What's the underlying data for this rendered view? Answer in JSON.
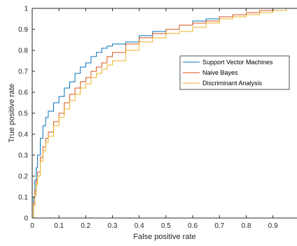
{
  "chart_data": {
    "type": "line",
    "title": "",
    "xlabel": "False positive rate",
    "ylabel": "True positive rate",
    "xlim": [
      0,
      0.99
    ],
    "ylim": [
      0,
      1
    ],
    "xticks": [
      "0",
      "0.1",
      "0.2",
      "0.3",
      "0.4",
      "0.5",
      "0.6",
      "0.7",
      "0.8",
      "0.9"
    ],
    "yticks": [
      "0",
      "0.1",
      "0.2",
      "0.3",
      "0.4",
      "0.5",
      "0.6",
      "0.7",
      "0.8",
      "0.9",
      "1"
    ],
    "grid": false,
    "legend_position": "right",
    "series": [
      {
        "name": "Support Vector Machines",
        "color": "#0072BD",
        "x": [
          0,
          0.005,
          0.01,
          0.015,
          0.02,
          0.03,
          0.04,
          0.05,
          0.06,
          0.08,
          0.1,
          0.12,
          0.14,
          0.16,
          0.18,
          0.2,
          0.22,
          0.24,
          0.26,
          0.28,
          0.3,
          0.35,
          0.4,
          0.45,
          0.5,
          0.55,
          0.6,
          0.65,
          0.7,
          0.75,
          0.8,
          0.85,
          0.9,
          0.95,
          0.99
        ],
        "y": [
          0,
          0.1,
          0.18,
          0.24,
          0.3,
          0.38,
          0.44,
          0.48,
          0.51,
          0.55,
          0.58,
          0.62,
          0.65,
          0.69,
          0.72,
          0.74,
          0.77,
          0.79,
          0.81,
          0.82,
          0.83,
          0.84,
          0.87,
          0.89,
          0.9,
          0.92,
          0.94,
          0.95,
          0.96,
          0.97,
          0.98,
          0.99,
          0.99,
          1.0,
          1.0
        ]
      },
      {
        "name": "Naive Bayes",
        "color": "#D95319",
        "x": [
          0,
          0.005,
          0.01,
          0.015,
          0.02,
          0.03,
          0.04,
          0.05,
          0.06,
          0.08,
          0.1,
          0.12,
          0.14,
          0.16,
          0.18,
          0.2,
          0.22,
          0.24,
          0.26,
          0.28,
          0.3,
          0.35,
          0.4,
          0.45,
          0.5,
          0.55,
          0.6,
          0.65,
          0.7,
          0.75,
          0.8,
          0.85,
          0.9,
          0.95,
          0.99
        ],
        "y": [
          0,
          0.07,
          0.13,
          0.18,
          0.22,
          0.29,
          0.34,
          0.38,
          0.41,
          0.46,
          0.5,
          0.55,
          0.59,
          0.62,
          0.65,
          0.67,
          0.7,
          0.72,
          0.74,
          0.77,
          0.79,
          0.83,
          0.86,
          0.88,
          0.9,
          0.92,
          0.93,
          0.94,
          0.96,
          0.97,
          0.98,
          0.99,
          1.0,
          1.0,
          1.0
        ]
      },
      {
        "name": "Discriminant Analysis",
        "color": "#EDB120",
        "x": [
          0,
          0.005,
          0.01,
          0.015,
          0.02,
          0.03,
          0.04,
          0.05,
          0.06,
          0.08,
          0.1,
          0.12,
          0.14,
          0.16,
          0.18,
          0.2,
          0.22,
          0.24,
          0.26,
          0.28,
          0.3,
          0.35,
          0.4,
          0.45,
          0.5,
          0.55,
          0.6,
          0.65,
          0.7,
          0.75,
          0.8,
          0.85,
          0.9,
          0.95,
          0.99
        ],
        "y": [
          0,
          0.06,
          0.11,
          0.16,
          0.2,
          0.27,
          0.32,
          0.36,
          0.39,
          0.44,
          0.48,
          0.52,
          0.56,
          0.59,
          0.62,
          0.64,
          0.67,
          0.69,
          0.71,
          0.73,
          0.75,
          0.8,
          0.84,
          0.86,
          0.88,
          0.89,
          0.91,
          0.93,
          0.95,
          0.96,
          0.97,
          0.98,
          0.99,
          1.0,
          1.0
        ]
      }
    ]
  }
}
